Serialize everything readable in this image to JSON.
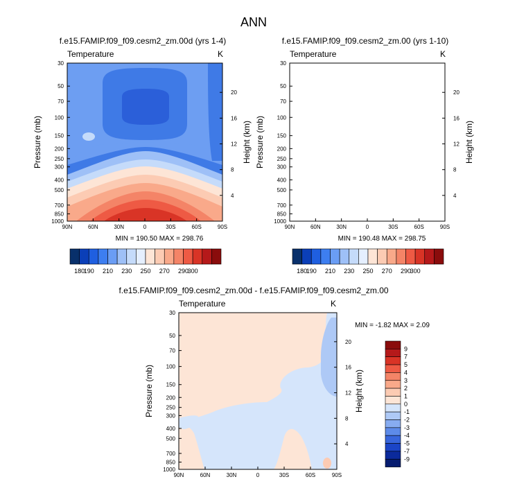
{
  "page_title": "ANN",
  "chart_data": [
    {
      "type": "heatmap",
      "title": "f.e15.FAMIP.f09_f09.cesm2_zm.00d (yrs 1-4)",
      "variable": "Temperature",
      "units": "K",
      "ylabel": "Pressure (mb)",
      "ylabel_right": "Height (km)",
      "x_ticks": [
        "90N",
        "60N",
        "30N",
        "0",
        "30S",
        "60S",
        "90S"
      ],
      "y_ticks": [
        "30",
        "50",
        "70",
        "100",
        "150",
        "200",
        "250",
        "300",
        "400",
        "500",
        "700",
        "850",
        "1000"
      ],
      "y_right_ticks": [
        "20",
        "16",
        "12",
        "8",
        "4"
      ],
      "stats": "MIN = 190.50  MAX = 298.76",
      "min": 190.5,
      "max": 298.76
    },
    {
      "type": "heatmap",
      "title": "f.e15.FAMIP.f09_f09.cesm2_zm.00 (yrs 1-10)",
      "variable": "Temperature",
      "units": "K",
      "ylabel": "Pressure (mb)",
      "ylabel_right": "Height (km)",
      "x_ticks": [
        "90N",
        "60N",
        "30N",
        "0",
        "30S",
        "60S",
        "90S"
      ],
      "y_ticks": [
        "30",
        "50",
        "70",
        "100",
        "150",
        "200",
        "250",
        "300",
        "400",
        "500",
        "700",
        "850",
        "1000"
      ],
      "y_right_ticks": [
        "20",
        "16",
        "12",
        "8",
        "4"
      ],
      "stats": "MIN = 190.48  MAX = 298.75",
      "min": 190.48,
      "max": 298.75
    },
    {
      "type": "heatmap",
      "title": "f.e15.FAMIP.f09_f09.cesm2_zm.00d - f.e15.FAMIP.f09_f09.cesm2_zm.00",
      "variable": "Temperature",
      "units": "K",
      "ylabel": "Pressure (mb)",
      "ylabel_right": "Height (km)",
      "x_ticks": [
        "90N",
        "60N",
        "30N",
        "0",
        "30S",
        "60S",
        "90S"
      ],
      "y_ticks": [
        "30",
        "50",
        "70",
        "100",
        "150",
        "200",
        "250",
        "300",
        "400",
        "500",
        "700",
        "850",
        "1000"
      ],
      "y_right_ticks": [
        "20",
        "16",
        "12",
        "8",
        "4"
      ],
      "stats": "MIN = -1.82  MAX =  2.09",
      "min": -1.82,
      "max": 2.09
    }
  ],
  "colorbar_abs": {
    "labels": [
      "180",
      "190",
      "210",
      "230",
      "250",
      "270",
      "290",
      "300"
    ],
    "colors": [
      "#08306b",
      "#0b3fb8",
      "#1f5fe0",
      "#3d7ef0",
      "#6a9df4",
      "#9ec0f7",
      "#c5dbfa",
      "#e5efff",
      "#fde5d6",
      "#fccbb3",
      "#f9a98a",
      "#f48467",
      "#ee5a44",
      "#d93426",
      "#b5191a",
      "#8a0c0c"
    ]
  },
  "colorbar_diff": {
    "labels": [
      "9",
      "7",
      "5",
      "4",
      "3",
      "2",
      "1",
      "0",
      "-1",
      "-2",
      "-3",
      "-4",
      "-5",
      "-7",
      "-9"
    ],
    "colors": [
      "#8a0c0c",
      "#b5191a",
      "#d93426",
      "#ee5a44",
      "#f48467",
      "#f9a98a",
      "#fccbb3",
      "#fde5d6",
      "#d5e5fb",
      "#aec9f6",
      "#87acf1",
      "#5d8be9",
      "#3866dc",
      "#1b45c7",
      "#0b2a9c",
      "#061c70"
    ]
  }
}
